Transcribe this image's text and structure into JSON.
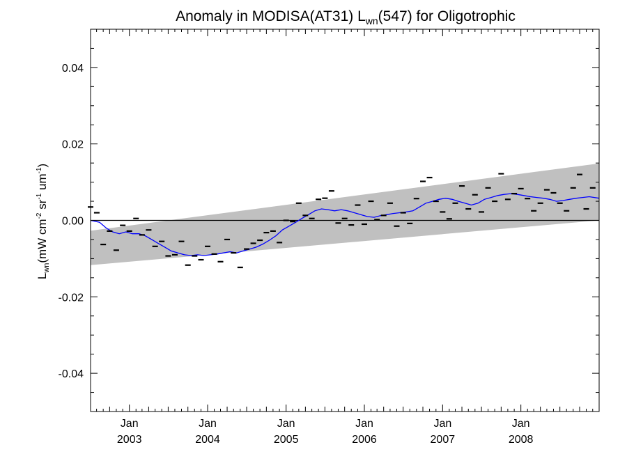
{
  "chart_data": {
    "type": "line",
    "title": {
      "prefix": "Anomaly in MODISA(AT31) L",
      "sub": "wn",
      "suffix": "(547) for Oligotrophic"
    },
    "ylabel": {
      "main": "L",
      "sub": "wn",
      "units_open": "(mW cm",
      "units_exp1": "-2",
      "units_mid1": " sr",
      "units_exp2": "-1",
      "units_mid2": " um",
      "units_exp3": "-1",
      "units_close": ")"
    },
    "xlim": [
      "2002-07-04",
      "2008-12-31"
    ],
    "ylim": [
      -0.05,
      0.05
    ],
    "yticks": [
      -0.04,
      -0.02,
      0.0,
      0.02,
      0.04
    ],
    "ytick_labels": [
      "-0.04",
      "-0.02",
      "0.00",
      "0.02",
      "0.04"
    ],
    "xticks": [
      {
        "date": "2003-01-01",
        "month": "Jan",
        "year": "2003"
      },
      {
        "date": "2004-01-01",
        "month": "Jan",
        "year": "2004"
      },
      {
        "date": "2005-01-01",
        "month": "Jan",
        "year": "2005"
      },
      {
        "date": "2006-01-01",
        "month": "Jan",
        "year": "2006"
      },
      {
        "date": "2007-01-01",
        "month": "Jan",
        "year": "2007"
      },
      {
        "date": "2008-01-01",
        "month": "Jan",
        "year": "2008"
      }
    ],
    "zero_line": 0.0,
    "band": {
      "color": "#c0c0c0",
      "start": {
        "date": "2002-07-04",
        "lower": -0.0117,
        "upper": -0.0027
      },
      "end": {
        "date": "2008-12-31",
        "lower": 0.0,
        "upper": 0.0149
      }
    },
    "series": [
      {
        "style": "dash-markers",
        "color": "#000000",
        "x": [
          "2002-07-04",
          "2002-08-02",
          "2002-09-01",
          "2002-10-01",
          "2002-11-01",
          "2002-12-01",
          "2003-01-01",
          "2003-02-01",
          "2003-03-01",
          "2003-04-01",
          "2003-05-01",
          "2003-06-01",
          "2003-07-01",
          "2003-08-01",
          "2003-09-01",
          "2003-10-01",
          "2003-11-01",
          "2003-12-01",
          "2004-01-01",
          "2004-02-01",
          "2004-03-01",
          "2004-04-01",
          "2004-05-01",
          "2004-06-01",
          "2004-07-01",
          "2004-08-01",
          "2004-09-01",
          "2004-10-01",
          "2004-11-01",
          "2004-12-01",
          "2005-01-01",
          "2005-02-01",
          "2005-03-01",
          "2005-04-01",
          "2005-05-01",
          "2005-06-01",
          "2005-07-01",
          "2005-08-01",
          "2005-09-01",
          "2005-10-01",
          "2005-11-01",
          "2005-12-01",
          "2006-01-01",
          "2006-02-01",
          "2006-03-01",
          "2006-04-01",
          "2006-05-01",
          "2006-06-01",
          "2006-07-01",
          "2006-08-01",
          "2006-09-01",
          "2006-10-01",
          "2006-11-01",
          "2006-12-01",
          "2007-01-01",
          "2007-02-01",
          "2007-03-01",
          "2007-04-01",
          "2007-05-01",
          "2007-06-01",
          "2007-07-01",
          "2007-08-01",
          "2007-09-01",
          "2007-10-01",
          "2007-11-01",
          "2007-12-01",
          "2008-01-01",
          "2008-02-01",
          "2008-03-01",
          "2008-04-01",
          "2008-05-01",
          "2008-06-01",
          "2008-07-01",
          "2008-08-01",
          "2008-09-01",
          "2008-10-01",
          "2008-11-01",
          "2008-12-01"
        ],
        "values": [
          0.0035,
          0.002,
          -0.0063,
          -0.0028,
          -0.0078,
          -0.0013,
          -0.0028,
          0.0005,
          -0.0038,
          -0.0025,
          -0.0068,
          -0.0055,
          -0.0093,
          -0.009,
          -0.0055,
          -0.0117,
          -0.0093,
          -0.0103,
          -0.0068,
          -0.0088,
          -0.0108,
          -0.005,
          -0.0085,
          -0.0123,
          -0.0075,
          -0.006,
          -0.0052,
          -0.0032,
          -0.0028,
          -0.0058,
          0.0,
          -0.0003,
          0.0045,
          0.0013,
          0.0005,
          0.0055,
          0.0058,
          0.0077,
          -0.0007,
          0.0005,
          -0.0012,
          0.004,
          -0.001,
          0.005,
          0.0002,
          0.0013,
          0.0045,
          -0.0015,
          0.002,
          -0.0008,
          0.0057,
          0.0102,
          0.0112,
          0.005,
          0.0022,
          0.0004,
          0.0045,
          0.009,
          0.003,
          0.0067,
          0.0022,
          0.0085,
          0.005,
          0.0122,
          0.0055,
          0.007,
          0.0083,
          0.0057,
          0.0025,
          0.0045,
          0.008,
          0.0072,
          0.0045,
          0.0025,
          0.0085,
          0.012,
          0.003,
          0.0085
        ]
      },
      {
        "style": "line",
        "color": "#0000ff",
        "x": [
          "2002-07-04",
          "2002-08-15",
          "2002-09-15",
          "2002-10-15",
          "2002-11-15",
          "2002-12-15",
          "2003-01-15",
          "2003-02-15",
          "2003-03-15",
          "2003-04-15",
          "2003-05-15",
          "2003-06-15",
          "2003-07-15",
          "2003-08-15",
          "2003-09-15",
          "2003-10-15",
          "2003-11-15",
          "2003-12-15",
          "2004-01-15",
          "2004-02-15",
          "2004-03-15",
          "2004-04-15",
          "2004-05-15",
          "2004-06-15",
          "2004-07-15",
          "2004-08-15",
          "2004-09-15",
          "2004-10-15",
          "2004-11-15",
          "2004-12-15",
          "2005-01-15",
          "2005-02-15",
          "2005-03-15",
          "2005-04-15",
          "2005-05-15",
          "2005-06-15",
          "2005-07-15",
          "2005-08-15",
          "2005-09-15",
          "2005-10-15",
          "2005-11-15",
          "2005-12-15",
          "2006-01-15",
          "2006-02-15",
          "2006-03-15",
          "2006-04-15",
          "2006-05-15",
          "2006-06-15",
          "2006-07-15",
          "2006-08-15",
          "2006-09-15",
          "2006-10-15",
          "2006-11-15",
          "2006-12-15",
          "2007-01-15",
          "2007-02-15",
          "2007-03-15",
          "2007-04-15",
          "2007-05-15",
          "2007-06-15",
          "2007-07-15",
          "2007-08-15",
          "2007-09-15",
          "2007-10-15",
          "2007-11-15",
          "2007-12-15",
          "2008-01-15",
          "2008-02-15",
          "2008-03-15",
          "2008-04-15",
          "2008-05-15",
          "2008-06-15",
          "2008-07-15",
          "2008-08-15",
          "2008-09-15",
          "2008-10-15",
          "2008-11-15",
          "2008-12-31"
        ],
        "values": [
          0.0,
          -0.0005,
          -0.002,
          -0.003,
          -0.0035,
          -0.003,
          -0.0035,
          -0.0035,
          -0.004,
          -0.005,
          -0.006,
          -0.007,
          -0.008,
          -0.0085,
          -0.009,
          -0.0092,
          -0.009,
          -0.0092,
          -0.009,
          -0.0088,
          -0.0085,
          -0.0082,
          -0.0085,
          -0.008,
          -0.0075,
          -0.007,
          -0.0062,
          -0.0052,
          -0.004,
          -0.0025,
          -0.0015,
          -0.0005,
          0.0005,
          0.0015,
          0.0025,
          0.003,
          0.0028,
          0.0025,
          0.0028,
          0.0025,
          0.002,
          0.0015,
          0.001,
          0.0008,
          0.0012,
          0.0015,
          0.0018,
          0.002,
          0.0022,
          0.0025,
          0.0035,
          0.0045,
          0.005,
          0.0055,
          0.0058,
          0.0055,
          0.005,
          0.0045,
          0.004,
          0.0045,
          0.0055,
          0.006,
          0.0065,
          0.0068,
          0.007,
          0.0068,
          0.0065,
          0.0062,
          0.006,
          0.0058,
          0.0055,
          0.005,
          0.0052,
          0.0055,
          0.0058,
          0.006,
          0.0062,
          0.0058
        ]
      }
    ]
  }
}
